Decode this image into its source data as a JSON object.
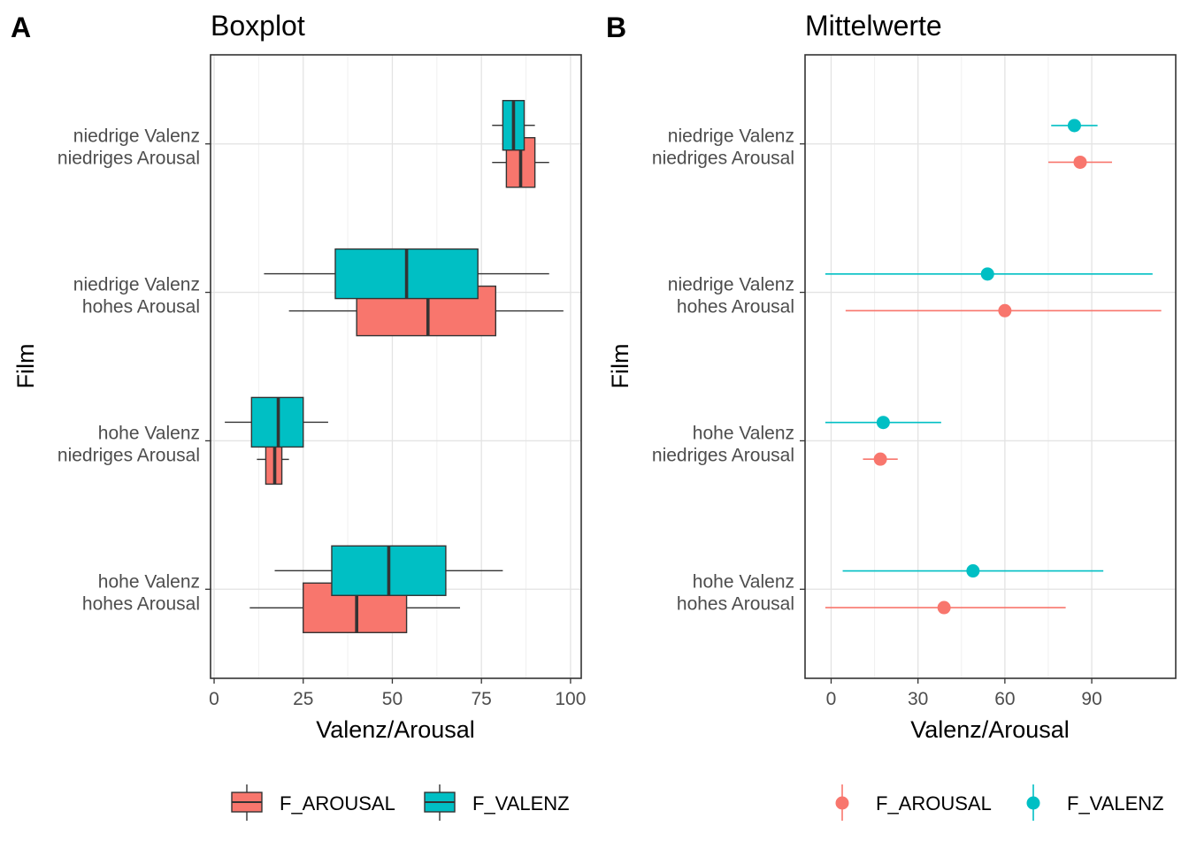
{
  "panels": {
    "a": {
      "tag": "A",
      "title": "Boxplot"
    },
    "b": {
      "tag": "B",
      "title": "Mittelwerte"
    }
  },
  "colors": {
    "F_AROUSAL": "#F8766D",
    "F_VALENZ": "#00BFC4"
  },
  "chart_data": [
    {
      "type": "boxplot",
      "title": "Boxplot",
      "xlabel": "Valenz/Arousal",
      "ylabel": "Film",
      "xlim": [
        -1,
        103
      ],
      "xticks": [
        0,
        25,
        50,
        75,
        100
      ],
      "grid": true,
      "legend": "bottom",
      "categories": [
        [
          "niedrige Valenz",
          "niedriges Arousal"
        ],
        [
          "niedrige Valenz",
          "hohes Arousal"
        ],
        [
          "hohe Valenz",
          "niedriges Arousal"
        ],
        [
          "hohe Valenz",
          "hohes Arousal"
        ]
      ],
      "series": [
        {
          "name": "F_AROUSAL",
          "boxes": [
            {
              "min": 78,
              "q1": 82,
              "median": 86,
              "q3": 90,
              "max": 94
            },
            {
              "min": 21,
              "q1": 40,
              "median": 60,
              "q3": 79,
              "max": 98
            },
            {
              "min": 12,
              "q1": 14.5,
              "median": 17,
              "q3": 19,
              "max": 21
            },
            {
              "min": 10,
              "q1": 25,
              "median": 40,
              "q3": 54,
              "max": 69
            }
          ]
        },
        {
          "name": "F_VALENZ",
          "boxes": [
            {
              "min": 78,
              "q1": 81,
              "median": 84,
              "q3": 87,
              "max": 90
            },
            {
              "min": 14,
              "q1": 34,
              "median": 54,
              "q3": 74,
              "max": 94
            },
            {
              "min": 3,
              "q1": 10.5,
              "median": 18,
              "q3": 25,
              "max": 32
            },
            {
              "min": 17,
              "q1": 33,
              "median": 49,
              "q3": 65,
              "max": 81
            }
          ]
        }
      ]
    },
    {
      "type": "pointrange",
      "title": "Mittelwerte",
      "xlabel": "Valenz/Arousal",
      "ylabel": "Film",
      "xlim": [
        -9,
        119
      ],
      "xticks": [
        0,
        30,
        60,
        90
      ],
      "grid": true,
      "legend": "bottom",
      "categories": [
        [
          "niedrige Valenz",
          "niedriges Arousal"
        ],
        [
          "niedrige Valenz",
          "hohes Arousal"
        ],
        [
          "hohe Valenz",
          "niedriges Arousal"
        ],
        [
          "hohe Valenz",
          "hohes Arousal"
        ]
      ],
      "series": [
        {
          "name": "F_AROUSAL",
          "points": [
            {
              "mean": 86,
              "lower": 75,
              "upper": 97
            },
            {
              "mean": 60,
              "lower": 5,
              "upper": 114
            },
            {
              "mean": 17,
              "lower": 11,
              "upper": 23
            },
            {
              "mean": 39,
              "lower": -2,
              "upper": 81
            }
          ]
        },
        {
          "name": "F_VALENZ",
          "points": [
            {
              "mean": 84,
              "lower": 76,
              "upper": 92
            },
            {
              "mean": 54,
              "lower": -2,
              "upper": 111
            },
            {
              "mean": 18,
              "lower": -2,
              "upper": 38
            },
            {
              "mean": 49,
              "lower": 4,
              "upper": 94
            }
          ]
        }
      ]
    }
  ]
}
